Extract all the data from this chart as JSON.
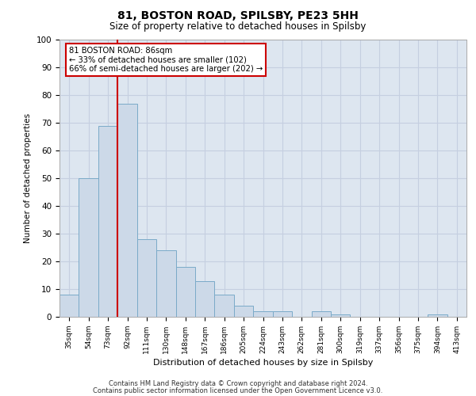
{
  "title_line1": "81, BOSTON ROAD, SPILSBY, PE23 5HH",
  "title_line2": "Size of property relative to detached houses in Spilsby",
  "xlabel": "Distribution of detached houses by size in Spilsby",
  "ylabel": "Number of detached properties",
  "footer_line1": "Contains HM Land Registry data © Crown copyright and database right 2024.",
  "footer_line2": "Contains public sector information licensed under the Open Government Licence v3.0.",
  "bar_labels": [
    "35sqm",
    "54sqm",
    "73sqm",
    "92sqm",
    "111sqm",
    "130sqm",
    "148sqm",
    "167sqm",
    "186sqm",
    "205sqm",
    "224sqm",
    "243sqm",
    "262sqm",
    "281sqm",
    "300sqm",
    "319sqm",
    "337sqm",
    "356sqm",
    "375sqm",
    "394sqm",
    "413sqm"
  ],
  "bar_values": [
    8,
    50,
    69,
    77,
    28,
    24,
    18,
    13,
    8,
    4,
    2,
    2,
    0,
    2,
    1,
    0,
    0,
    0,
    0,
    1,
    0
  ],
  "bar_color": "#ccd9e8",
  "bar_edge_color": "#7aaac8",
  "grid_color": "#c5cfe0",
  "bg_color": "#dde6f0",
  "vline_color": "#cc0000",
  "vline_x": 2.5,
  "annotation_text": "81 BOSTON ROAD: 86sqm\n← 33% of detached houses are smaller (102)\n66% of semi-detached houses are larger (202) →",
  "annotation_box_color": "#ffffff",
  "annotation_box_edge": "#cc0000",
  "ylim": [
    0,
    100
  ],
  "yticks": [
    0,
    10,
    20,
    30,
    40,
    50,
    60,
    70,
    80,
    90,
    100
  ]
}
